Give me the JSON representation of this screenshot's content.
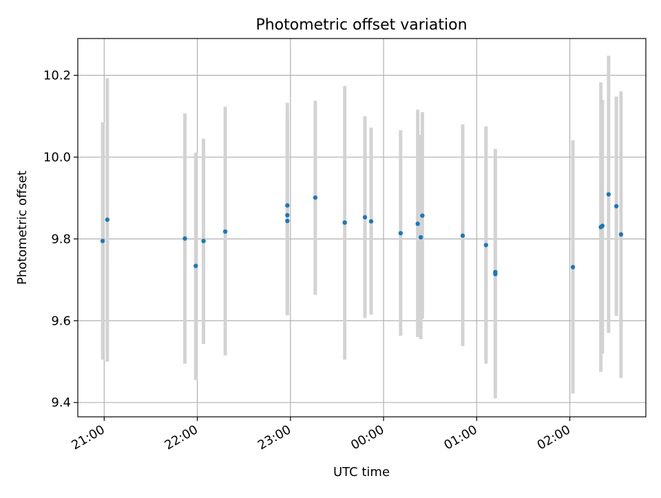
{
  "chart_data": {
    "type": "scatter",
    "title": "Photometric offset variation",
    "xlabel": "UTC time",
    "ylabel": "Photometric offset",
    "x_unit": "UTC time of day (night spanning midnight)",
    "xlim": [
      "20:43",
      "02:49"
    ],
    "ylim": [
      9.365,
      10.29
    ],
    "xticks": [
      "21:00",
      "22:00",
      "23:00",
      "00:00",
      "01:00",
      "02:00"
    ],
    "yticks": [
      9.4,
      9.6,
      9.8,
      10.0,
      10.2
    ],
    "ytick_labels": [
      "9.4",
      "9.6",
      "9.8",
      "10.0",
      "10.2"
    ],
    "grid": true,
    "colors": {
      "point": "#1f77b4",
      "errorbar": "#d3d3d3",
      "grid": "#b0b0b0"
    },
    "points": [
      {
        "x": "20:59",
        "y": 9.795,
        "ylow": 9.505,
        "yhigh": 10.085
      },
      {
        "x": "21:02",
        "y": 9.847,
        "ylow": 9.5,
        "yhigh": 10.193
      },
      {
        "x": "21:52",
        "y": 9.801,
        "ylow": 9.495,
        "yhigh": 10.107
      },
      {
        "x": "21:59",
        "y": 9.734,
        "ylow": 9.455,
        "yhigh": 10.011
      },
      {
        "x": "22:04",
        "y": 9.795,
        "ylow": 9.543,
        "yhigh": 10.045
      },
      {
        "x": "22:18",
        "y": 9.818,
        "ylow": 9.515,
        "yhigh": 10.123
      },
      {
        "x": "22:58",
        "y": 9.844,
        "ylow": 9.613,
        "yhigh": 10.092
      },
      {
        "x": "22:58",
        "y": 9.858,
        "ylow": 9.62,
        "yhigh": 10.1
      },
      {
        "x": "22:58",
        "y": 9.882,
        "ylow": 9.63,
        "yhigh": 10.133
      },
      {
        "x": "23:16",
        "y": 9.901,
        "ylow": 9.663,
        "yhigh": 10.138
      },
      {
        "x": "23:35",
        "y": 9.84,
        "ylow": 9.505,
        "yhigh": 10.174
      },
      {
        "x": "23:48",
        "y": 9.853,
        "ylow": 9.607,
        "yhigh": 10.1
      },
      {
        "x": "23:52",
        "y": 9.843,
        "ylow": 9.615,
        "yhigh": 10.072
      },
      {
        "x": "00:11",
        "y": 9.814,
        "ylow": 9.563,
        "yhigh": 10.066
      },
      {
        "x": "00:22",
        "y": 9.837,
        "ylow": 9.56,
        "yhigh": 10.116
      },
      {
        "x": "00:24",
        "y": 9.804,
        "ylow": 9.555,
        "yhigh": 10.055
      },
      {
        "x": "00:25",
        "y": 9.857,
        "ylow": 9.605,
        "yhigh": 10.11
      },
      {
        "x": "00:51",
        "y": 9.808,
        "ylow": 9.538,
        "yhigh": 10.08
      },
      {
        "x": "01:06",
        "y": 9.785,
        "ylow": 9.495,
        "yhigh": 10.075
      },
      {
        "x": "01:12",
        "y": 9.719,
        "ylow": 9.41,
        "yhigh": 10.02
      },
      {
        "x": "01:12",
        "y": 9.714,
        "ylow": 9.43,
        "yhigh": 9.998
      },
      {
        "x": "02:02",
        "y": 9.731,
        "ylow": 9.422,
        "yhigh": 10.041
      },
      {
        "x": "02:20",
        "y": 9.829,
        "ylow": 9.475,
        "yhigh": 10.183
      },
      {
        "x": "02:21",
        "y": 9.832,
        "ylow": 9.52,
        "yhigh": 10.14
      },
      {
        "x": "02:25",
        "y": 9.909,
        "ylow": 9.57,
        "yhigh": 10.248
      },
      {
        "x": "02:30",
        "y": 9.88,
        "ylow": 9.612,
        "yhigh": 10.148
      },
      {
        "x": "02:33",
        "y": 9.811,
        "ylow": 9.46,
        "yhigh": 10.161
      }
    ]
  }
}
